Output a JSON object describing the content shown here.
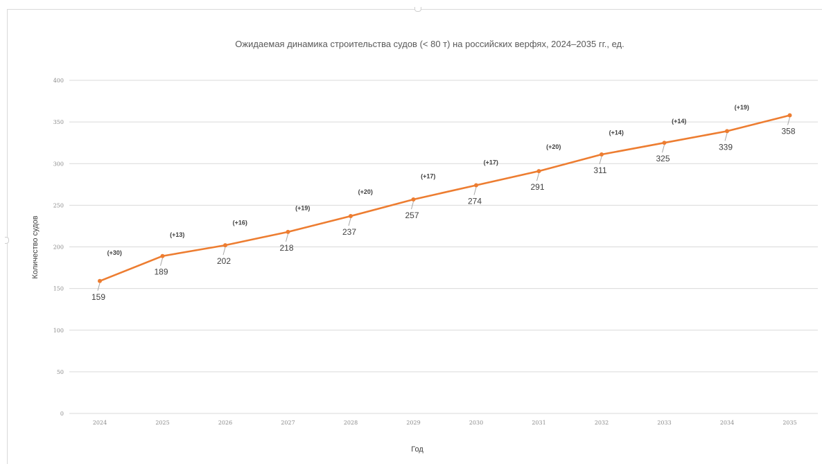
{
  "chart_data": {
    "type": "line",
    "title": "Ожидаемая динамика строительства судов (< 80 т) на российских верфях, 2024–2035 гг., ед.",
    "xlabel": "Год",
    "ylabel": "Количество судов",
    "categories": [
      "2024",
      "2025",
      "2026",
      "2027",
      "2028",
      "2029",
      "2030",
      "2031",
      "2032",
      "2033",
      "2034",
      "2035"
    ],
    "series": [
      {
        "values": [
          159,
          189,
          202,
          218,
          237,
          257,
          274,
          291,
          311,
          325,
          339,
          358
        ],
        "color": "#ed7d31"
      }
    ],
    "increments": [
      "(+30)",
      "(+13)",
      "(+16)",
      "(+19)",
      "(+20)",
      "(+17)",
      "(+17)",
      "(+20)",
      "(+14)",
      "(+14)",
      "(+19)"
    ],
    "ylim": [
      0,
      400
    ],
    "yticks": [
      0,
      50,
      100,
      150,
      200,
      250,
      300,
      350,
      400
    ],
    "grid": true,
    "gridColor": "#d9d9d9",
    "legend": "none"
  }
}
